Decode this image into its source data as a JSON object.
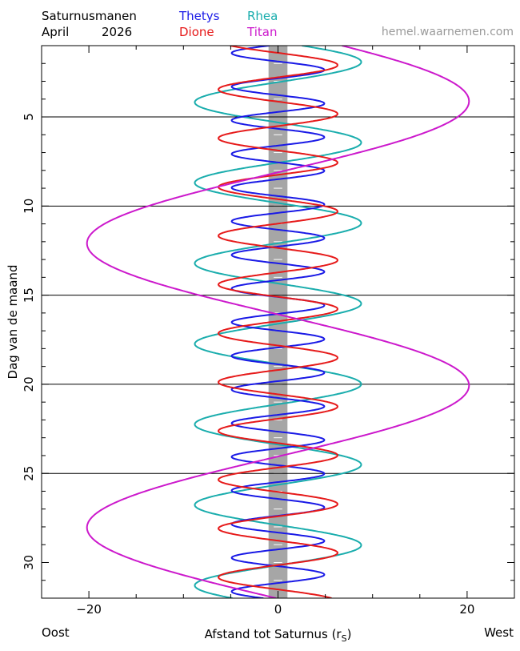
{
  "header": {
    "title": "Saturnusmanen",
    "month": "April",
    "year": "2026",
    "site": "hemel.waarnemen.com"
  },
  "footer": {
    "east": "Oost",
    "west": "West"
  },
  "chart_data": {
    "type": "line",
    "ylabel": "Dag van de maand",
    "xlabel_main": "Afstand tot Saturnus (r",
    "xlabel_sub": "S",
    "xlabel_close": ")",
    "xlim": [
      -25,
      25
    ],
    "ylim": [
      1.0,
      32.0
    ],
    "y_inverted": true,
    "xticks": [
      -20,
      0,
      20
    ],
    "xtick_labels": [
      "−20",
      "0",
      "20"
    ],
    "yticks": [
      5,
      10,
      15,
      20,
      25,
      30
    ],
    "ytick_labels": [
      "5",
      "10",
      "15",
      "20",
      "25",
      "30"
    ],
    "horizontal_lines": [
      5,
      10,
      15,
      20,
      25
    ],
    "saturn_band": [
      -1.0,
      1.0
    ],
    "saturn_color": "#a6a6a6",
    "series": [
      {
        "name": "Thetys",
        "color": "#1a1ae6",
        "amplitude": 4.9,
        "period": 1.888,
        "peak_day": 2.36
      },
      {
        "name": "Dione",
        "color": "#e61a1a",
        "amplitude": 6.3,
        "period": 2.737,
        "peak_day": 2.09
      },
      {
        "name": "Rhea",
        "color": "#1aadad",
        "amplitude": 8.8,
        "period": 4.518,
        "peak_day": 1.92
      },
      {
        "name": "Titan",
        "color": "#cc19cc",
        "amplitude": 20.2,
        "period": 15.945,
        "peak_day": 4.12
      }
    ]
  }
}
